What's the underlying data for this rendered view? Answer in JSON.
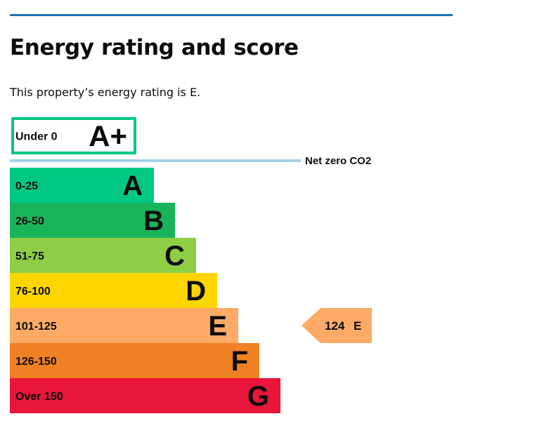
{
  "page": {
    "title": "Energy rating and score",
    "summary": "This property’s energy rating is E."
  },
  "chart_data": {
    "type": "bar",
    "title": "",
    "categories": [
      "A+",
      "A",
      "B",
      "C",
      "D",
      "E",
      "F",
      "G"
    ],
    "bands": [
      {
        "letter": "A+",
        "range": "Under 0",
        "color": "#00c781",
        "style": "outline",
        "index": 0
      },
      {
        "letter": "A",
        "range": "0-25",
        "color": "#00c781",
        "style": "filled",
        "index": 1
      },
      {
        "letter": "B",
        "range": "26-50",
        "color": "#19b459",
        "style": "filled",
        "index": 2
      },
      {
        "letter": "C",
        "range": "51-75",
        "color": "#8dce46",
        "style": "filled",
        "index": 3
      },
      {
        "letter": "D",
        "range": "76-100",
        "color": "#ffd500",
        "style": "filled",
        "index": 4
      },
      {
        "letter": "E",
        "range": "101-125",
        "color": "#fcaa65",
        "style": "filled",
        "index": 5
      },
      {
        "letter": "F",
        "range": "126-150",
        "color": "#ef8023",
        "style": "filled",
        "index": 6
      },
      {
        "letter": "G",
        "range": "Over 150",
        "color": "#e9153b",
        "style": "filled",
        "index": 7
      }
    ],
    "net_zero_label": "Net zero CO2",
    "net_zero_line_color": "#a3d2e9",
    "current_rating": {
      "score": "124",
      "band": "E",
      "color": "#fcaa65"
    }
  }
}
